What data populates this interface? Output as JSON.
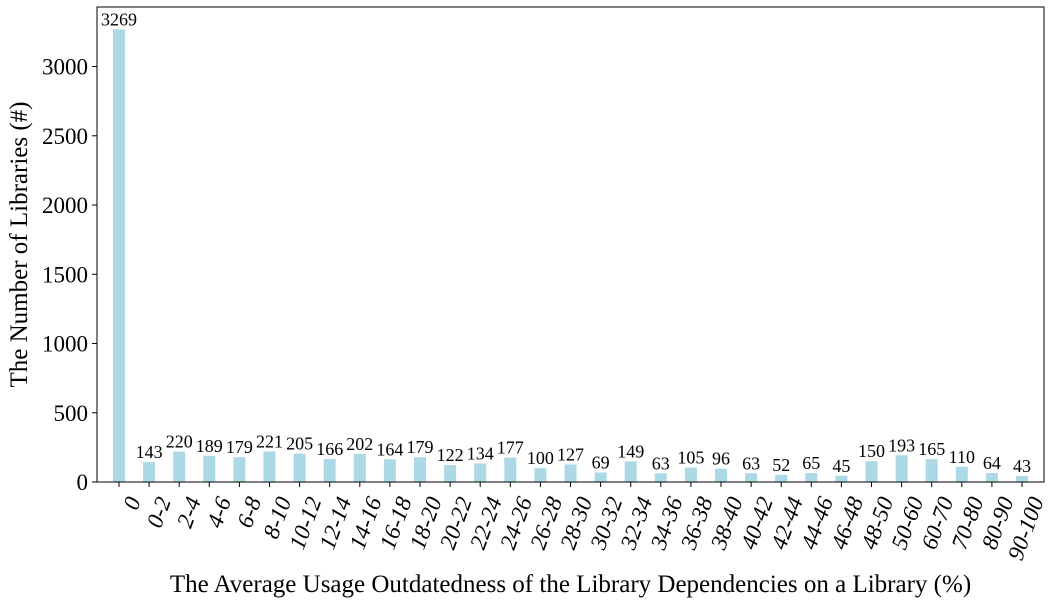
{
  "chart_data": {
    "type": "bar",
    "title": "",
    "xlabel": "The Average Usage Outdatedness of the Library Dependencies on a Library (%)",
    "ylabel": "The Number of Libraries (#)",
    "categories": [
      "0",
      "0-2",
      "2-4",
      "4-6",
      "6-8",
      "8-10",
      "10-12",
      "12-14",
      "14-16",
      "16-18",
      "18-20",
      "20-22",
      "22-24",
      "24-26",
      "26-28",
      "28-30",
      "30-32",
      "32-34",
      "34-36",
      "36-38",
      "38-40",
      "40-42",
      "42-44",
      "44-46",
      "46-48",
      "48-50",
      "50-60",
      "60-70",
      "70-80",
      "80-90",
      "90-100"
    ],
    "values": [
      3269,
      143,
      220,
      189,
      179,
      221,
      205,
      166,
      202,
      164,
      179,
      122,
      134,
      177,
      100,
      127,
      69,
      149,
      63,
      105,
      96,
      63,
      52,
      65,
      45,
      150,
      193,
      165,
      110,
      64,
      43
    ],
    "data_labels": [
      "3269",
      "143",
      "220",
      "189",
      "179",
      "221",
      "205",
      "166",
      "202",
      "164",
      "179",
      "122",
      "134",
      "177",
      "100",
      "127",
      "69",
      "149",
      "63",
      "105",
      "96",
      "63",
      "52",
      "65",
      "45",
      "150",
      "193",
      "165",
      "110",
      "64",
      "43"
    ],
    "yticks": [
      0,
      500,
      1000,
      1500,
      2000,
      2500,
      3000
    ],
    "ytick_labels": [
      "0",
      "500",
      "1000",
      "1500",
      "2000",
      "2500",
      "3000"
    ],
    "ylim": [
      0,
      3430
    ],
    "bar_color": "#add8e6",
    "grid": false,
    "legend": "none"
  }
}
